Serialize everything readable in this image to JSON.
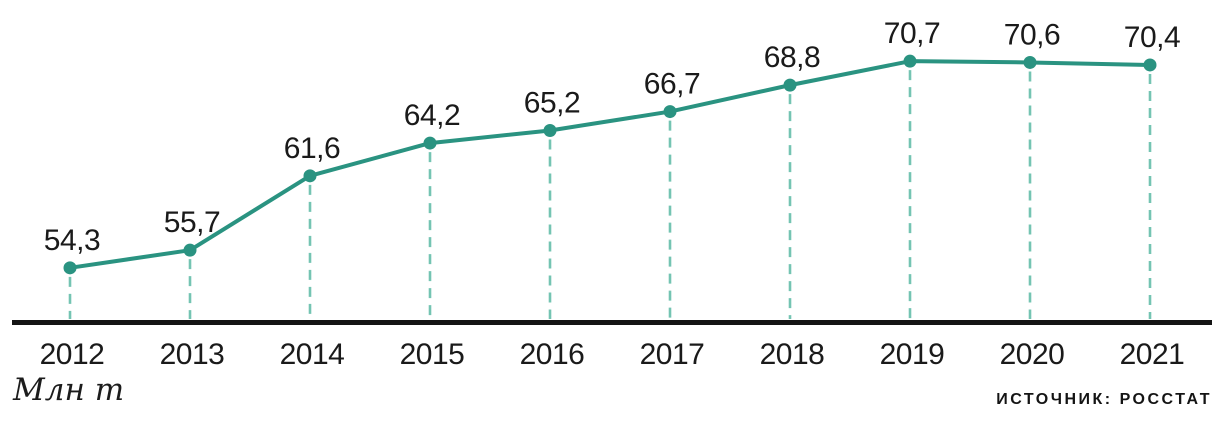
{
  "chart_data": {
    "type": "line",
    "categories": [
      "2012",
      "2013",
      "2014",
      "2015",
      "2016",
      "2017",
      "2018",
      "2019",
      "2020",
      "2021"
    ],
    "values": [
      54.3,
      55.7,
      61.6,
      64.2,
      65.2,
      66.7,
      68.8,
      70.7,
      70.6,
      70.4
    ],
    "value_labels": [
      "54,3",
      "55,7",
      "61,6",
      "64,2",
      "65,2",
      "66,7",
      "68,8",
      "70,7",
      "70,6",
      "70,4"
    ],
    "title": "",
    "xlabel": "",
    "ylabel": "Млн т",
    "ylim": [
      50,
      74
    ],
    "grid": "off",
    "legend": "none",
    "unit_label": "Млн т",
    "source_label": "ИСТОЧНИК: РОССТАТ",
    "line_color": "#2a9381",
    "marker_color": "#2a9381",
    "dash_color": "#74c4b2",
    "axis_color": "#141414",
    "label_color": "#1a1a1a"
  }
}
